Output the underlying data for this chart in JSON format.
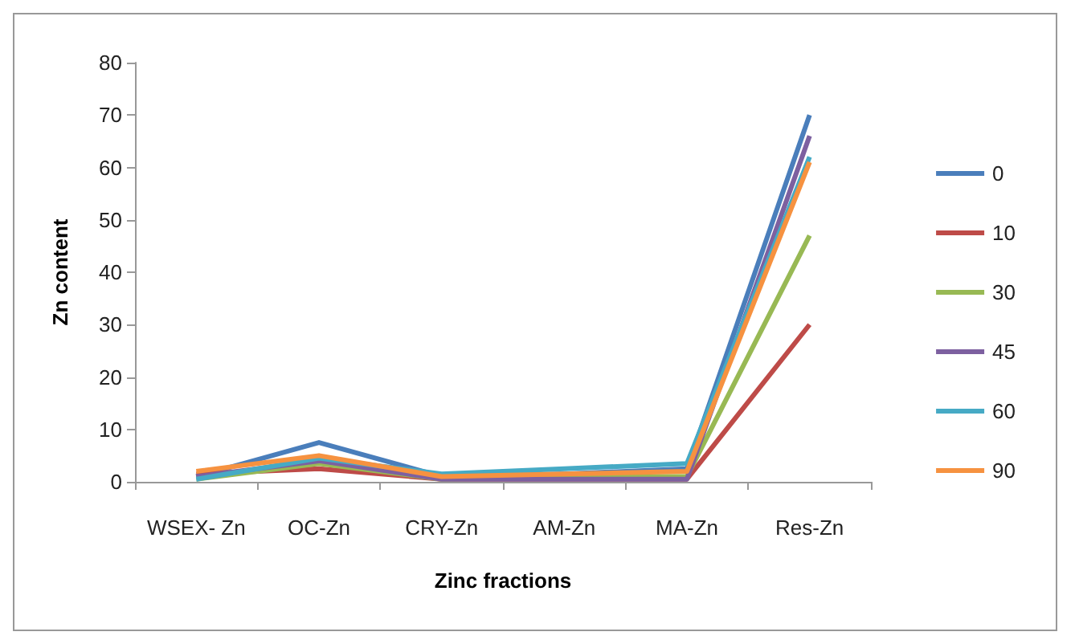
{
  "chart_data": {
    "type": "line",
    "xlabel": "Zinc fractions",
    "ylabel": "Zn content",
    "categories": [
      "WSEX- Zn",
      "OC-Zn",
      "CRY-Zn",
      "AM-Zn",
      "MA-Zn",
      "Res-Zn"
    ],
    "series": [
      {
        "name": "0",
        "color": "#4a7ebb",
        "values": [
          1,
          7.5,
          1,
          1.5,
          2.5,
          70
        ]
      },
      {
        "name": "10",
        "color": "#be4b48",
        "values": [
          1.5,
          2.5,
          0.5,
          0.5,
          0.5,
          30
        ]
      },
      {
        "name": "30",
        "color": "#98b954",
        "values": [
          0.5,
          3.5,
          0.5,
          1,
          1,
          47
        ]
      },
      {
        "name": "45",
        "color": "#7d60a0",
        "values": [
          1,
          4,
          0.5,
          0.5,
          0.5,
          66
        ]
      },
      {
        "name": "60",
        "color": "#46aac5",
        "values": [
          0.5,
          4.5,
          1.5,
          2.5,
          3.5,
          62
        ]
      },
      {
        "name": "90",
        "color": "#f69240",
        "values": [
          2,
          5,
          1,
          1.5,
          2,
          61
        ]
      }
    ],
    "ylim": [
      0,
      80
    ],
    "yticks": [
      0,
      10,
      20,
      30,
      40,
      50,
      60,
      70,
      80
    ],
    "grid": false,
    "legend": "right",
    "marker": "none",
    "line_style": "solid"
  }
}
